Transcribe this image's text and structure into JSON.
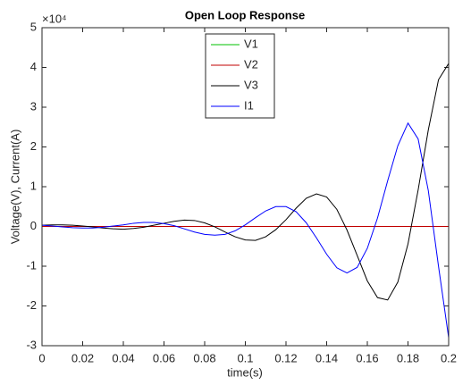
{
  "chart_data": {
    "type": "line",
    "title": "Open Loop Response",
    "x_label": "time(s)",
    "y_label": "Voltage(V), Current(A)",
    "y_exponent": "×10⁴",
    "x": [
      0,
      0.005,
      0.01,
      0.015,
      0.02,
      0.025,
      0.03,
      0.035,
      0.04,
      0.045,
      0.05,
      0.055,
      0.06,
      0.065,
      0.07,
      0.075,
      0.08,
      0.085,
      0.09,
      0.095,
      0.1,
      0.105,
      0.11,
      0.115,
      0.12,
      0.125,
      0.13,
      0.135,
      0.14,
      0.145,
      0.15,
      0.155,
      0.16,
      0.165,
      0.17,
      0.175,
      0.18,
      0.185,
      0.19,
      0.195,
      0.2
    ],
    "series": [
      {
        "name": "V1",
        "color": "#00c000",
        "values": [
          0,
          0,
          0,
          0,
          0,
          0,
          0,
          0,
          0,
          0,
          0,
          0,
          0,
          0,
          0,
          0,
          0,
          0,
          0,
          0,
          0,
          0,
          0,
          0,
          0,
          0,
          0,
          0,
          0,
          0,
          0,
          0,
          0,
          0,
          0,
          0,
          0,
          0,
          0,
          0,
          0
        ]
      },
      {
        "name": "V2",
        "color": "#c00000",
        "values": [
          0,
          0,
          0,
          0,
          0,
          0,
          0,
          0,
          0,
          0,
          0,
          0,
          0,
          0,
          0,
          0,
          0,
          0,
          0,
          0,
          0,
          0,
          0,
          0,
          0,
          0,
          0,
          0,
          0,
          0,
          0,
          0,
          0,
          0,
          0,
          0,
          0,
          0,
          0,
          0,
          0
        ]
      },
      {
        "name": "V3",
        "color": "#000000",
        "values": [
          0.03,
          0.04,
          0.04,
          0.03,
          0.01,
          -0.01,
          -0.04,
          -0.06,
          -0.07,
          -0.05,
          -0.02,
          0.03,
          0.08,
          0.13,
          0.16,
          0.15,
          0.09,
          -0.01,
          -0.14,
          -0.26,
          -0.34,
          -0.35,
          -0.26,
          -0.08,
          0.17,
          0.46,
          0.71,
          0.82,
          0.74,
          0.43,
          -0.09,
          -0.73,
          -1.37,
          -1.79,
          -1.85,
          -1.4,
          -0.44,
          0.92,
          2.43,
          3.69,
          4.1
        ]
      },
      {
        "name": "I1",
        "color": "#0000ff",
        "values": [
          0.03,
          0.01,
          -0.01,
          -0.03,
          -0.04,
          -0.04,
          -0.02,
          0.01,
          0.04,
          0.08,
          0.1,
          0.1,
          0.07,
          0.02,
          -0.06,
          -0.14,
          -0.2,
          -0.22,
          -0.2,
          -0.11,
          0.04,
          0.22,
          0.39,
          0.5,
          0.5,
          0.37,
          0.09,
          -0.29,
          -0.7,
          -1.04,
          -1.17,
          -1.03,
          -0.55,
          0.21,
          1.15,
          2.03,
          2.6,
          2.2,
          0.9,
          -1.0,
          -2.8
        ]
      }
    ],
    "xlim": [
      0,
      0.2
    ],
    "xticks": [
      0,
      0.02,
      0.04,
      0.06,
      0.08,
      0.1,
      0.12,
      0.14,
      0.16,
      0.18,
      0.2
    ],
    "ylim": [
      -3,
      5
    ],
    "yticks": [
      -3,
      -2,
      -1,
      0,
      1,
      2,
      3,
      4,
      5
    ],
    "grid": false,
    "legend": "top"
  }
}
